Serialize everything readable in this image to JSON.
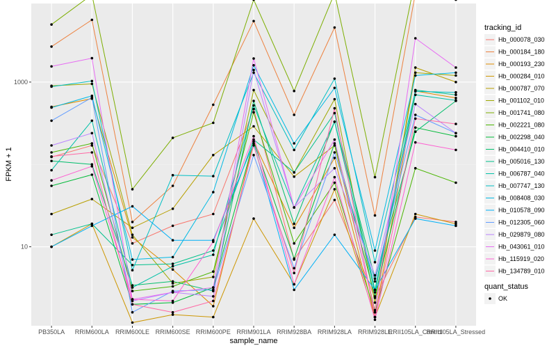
{
  "chart_data": {
    "type": "line",
    "xlabel": "sample_name",
    "ylabel": "FPKM + 1",
    "y_scale": "log10",
    "ylim": [
      1.1,
      9000
    ],
    "y_ticks": [
      10,
      1000
    ],
    "y_tick_labels": [
      "10",
      "1000"
    ],
    "grid": true,
    "legend_position": "right",
    "categories": [
      "PB350LA",
      "RRIM600LA",
      "RRIM600LE",
      "RRIM600SE",
      "RRIM600PE",
      "RRIM901LA",
      "RRIM928BA",
      "RRIM928LA",
      "RRIM928LE",
      "RRII105LA_Control",
      "RRII105LA_Stressed"
    ],
    "series": [
      {
        "name": "Hb_000078_030",
        "color": "#F8766D",
        "values": [
          123,
          170,
          11,
          18,
          25,
          470,
          7,
          37,
          2.4,
          23,
          20
        ]
      },
      {
        "name": "Hb_000184_180",
        "color": "#ED813E",
        "values": [
          2700,
          5700,
          20,
          55,
          530,
          5500,
          400,
          4600,
          24,
          12000,
          10000
        ]
      },
      {
        "name": "Hb_000193_230",
        "color": "#DE8C00",
        "values": [
          500,
          630,
          13,
          5.3,
          1.9,
          190,
          17,
          120,
          1.4,
          780,
          640
        ]
      },
      {
        "name": "Hb_000284_010",
        "color": "#CD9600",
        "values": [
          10,
          19,
          1.2,
          1.5,
          1.4,
          22,
          3.5,
          50,
          1.4,
          25,
          19
        ]
      },
      {
        "name": "Hb_000787_070",
        "color": "#B79F00",
        "values": [
          25,
          38,
          17,
          29,
          130,
          290,
          71,
          170,
          1.7,
          1500,
          1000
        ]
      },
      {
        "name": "Hb_001102_010",
        "color": "#9DA700",
        "values": [
          900,
          950,
          14,
          3.6,
          4.3,
          800,
          80,
          620,
          2.1,
          1300,
          1200
        ]
      },
      {
        "name": "Hb_001741_080",
        "color": "#7CAE00",
        "values": [
          5000,
          11500,
          50,
          210,
          320,
          10000,
          780,
          12000,
          70,
          18000,
          13000
        ]
      },
      {
        "name": "Hb_002221_080",
        "color": "#49B500",
        "values": [
          140,
          180,
          2.9,
          3.3,
          5.0,
          430,
          11,
          60,
          1.6,
          90,
          60
        ]
      },
      {
        "name": "Hb_002298_040",
        "color": "#00BA38",
        "values": [
          55,
          75,
          2.0,
          2.1,
          3.2,
          190,
          7.2,
          180,
          2.5,
          280,
          220
        ]
      },
      {
        "name": "Hb_004410_010",
        "color": "#00BE6C",
        "values": [
          110,
          100,
          3.4,
          3.8,
          2.9,
          590,
          19,
          330,
          4.1,
          250,
          590
        ]
      },
      {
        "name": "Hb_005016_130",
        "color": "#00C08B",
        "values": [
          14,
          19,
          6.0,
          6.2,
          9.0,
          200,
          80,
          420,
          3.0,
          800,
          700
        ]
      },
      {
        "name": "Hb_006787_040",
        "color": "#00C1A7",
        "values": [
          85,
          340,
          3.2,
          5.8,
          8.0,
          520,
          30,
          330,
          2.8,
          700,
          600
        ]
      },
      {
        "name": "Hb_007747_130",
        "color": "#00BFC4",
        "values": [
          880,
          1030,
          5.2,
          74,
          72,
          1300,
          150,
          1100,
          6.5,
          770,
          750
        ]
      },
      {
        "name": "Hb_008408_030",
        "color": "#00B9E3",
        "values": [
          490,
          680,
          7.0,
          7.5,
          46,
          1600,
          180,
          850,
          9.0,
          1200,
          1300
        ]
      },
      {
        "name": "Hb_010578_090",
        "color": "#00B0F6",
        "values": [
          10,
          18,
          31,
          12,
          12,
          180,
          3.0,
          14,
          3.0,
          22,
          18
        ]
      },
      {
        "name": "Hb_012305_060",
        "color": "#619CFF",
        "values": [
          340,
          650,
          1.6,
          2.9,
          3.0,
          130,
          5.5,
          140,
          3.8,
          400,
          240
        ]
      },
      {
        "name": "Hb_029879_080",
        "color": "#B983FF",
        "values": [
          170,
          240,
          2.2,
          2.8,
          2.5,
          1400,
          30,
          90,
          4.5,
          540,
          240
        ]
      },
      {
        "name": "Hb_043061_010",
        "color": "#E76BF3",
        "values": [
          1550,
          1950,
          2.3,
          2.8,
          3.2,
          1930,
          30,
          200,
          1.6,
          3400,
          1500
        ]
      },
      {
        "name": "Hb_115919_020",
        "color": "#FD61D1",
        "values": [
          64,
          95,
          2.3,
          2.2,
          11.5,
          220,
          3.5,
          70,
          1.3,
          185,
          150
        ]
      },
      {
        "name": "Hb_134789_010",
        "color": "#FF67A4",
        "values": [
          125,
          140,
          2.0,
          1.6,
          2.2,
          170,
          4.8,
          480,
          1.4,
          360,
          310
        ]
      }
    ],
    "legend_title": "tracking_id",
    "shape_legend": {
      "title": "quant_status",
      "entries": [
        "OK"
      ]
    }
  }
}
